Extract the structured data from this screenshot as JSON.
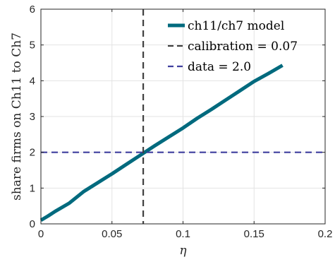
{
  "chart_data": {
    "type": "line",
    "xlabel": "η",
    "ylabel": "share firms on Ch11 to Ch7",
    "xlim": [
      0,
      0.2
    ],
    "ylim": [
      0,
      6
    ],
    "xticks": [
      0,
      0.05,
      0.1,
      0.15,
      0.2
    ],
    "xtick_labels": [
      "0",
      "0.05",
      "0.1",
      "0.15",
      "0.2"
    ],
    "yticks": [
      0,
      1,
      2,
      3,
      4,
      5,
      6
    ],
    "ytick_labels": [
      "0",
      "1",
      "2",
      "3",
      "4",
      "5",
      "6"
    ],
    "grid": true,
    "legend_position": "top-right",
    "series": [
      {
        "name": "ch11/ch7 model",
        "style": "solid",
        "color": "#006a7e",
        "x": [
          0,
          0.005,
          0.01,
          0.02,
          0.03,
          0.04,
          0.05,
          0.06,
          0.07,
          0.08,
          0.09,
          0.1,
          0.11,
          0.12,
          0.13,
          0.14,
          0.15,
          0.16,
          0.17
        ],
        "y": [
          0.1,
          0.22,
          0.35,
          0.58,
          0.9,
          1.15,
          1.4,
          1.66,
          1.92,
          2.18,
          2.43,
          2.68,
          2.95,
          3.2,
          3.46,
          3.72,
          3.98,
          4.2,
          4.43
        ]
      },
      {
        "name": "calibration = 0.07",
        "style": "dashed",
        "color": "#404040",
        "orientation": "vertical",
        "value": 0.072
      },
      {
        "name": "data = 2.0",
        "style": "dashed",
        "color": "#3f3f9e",
        "orientation": "horizontal",
        "value": 2.0
      }
    ]
  }
}
